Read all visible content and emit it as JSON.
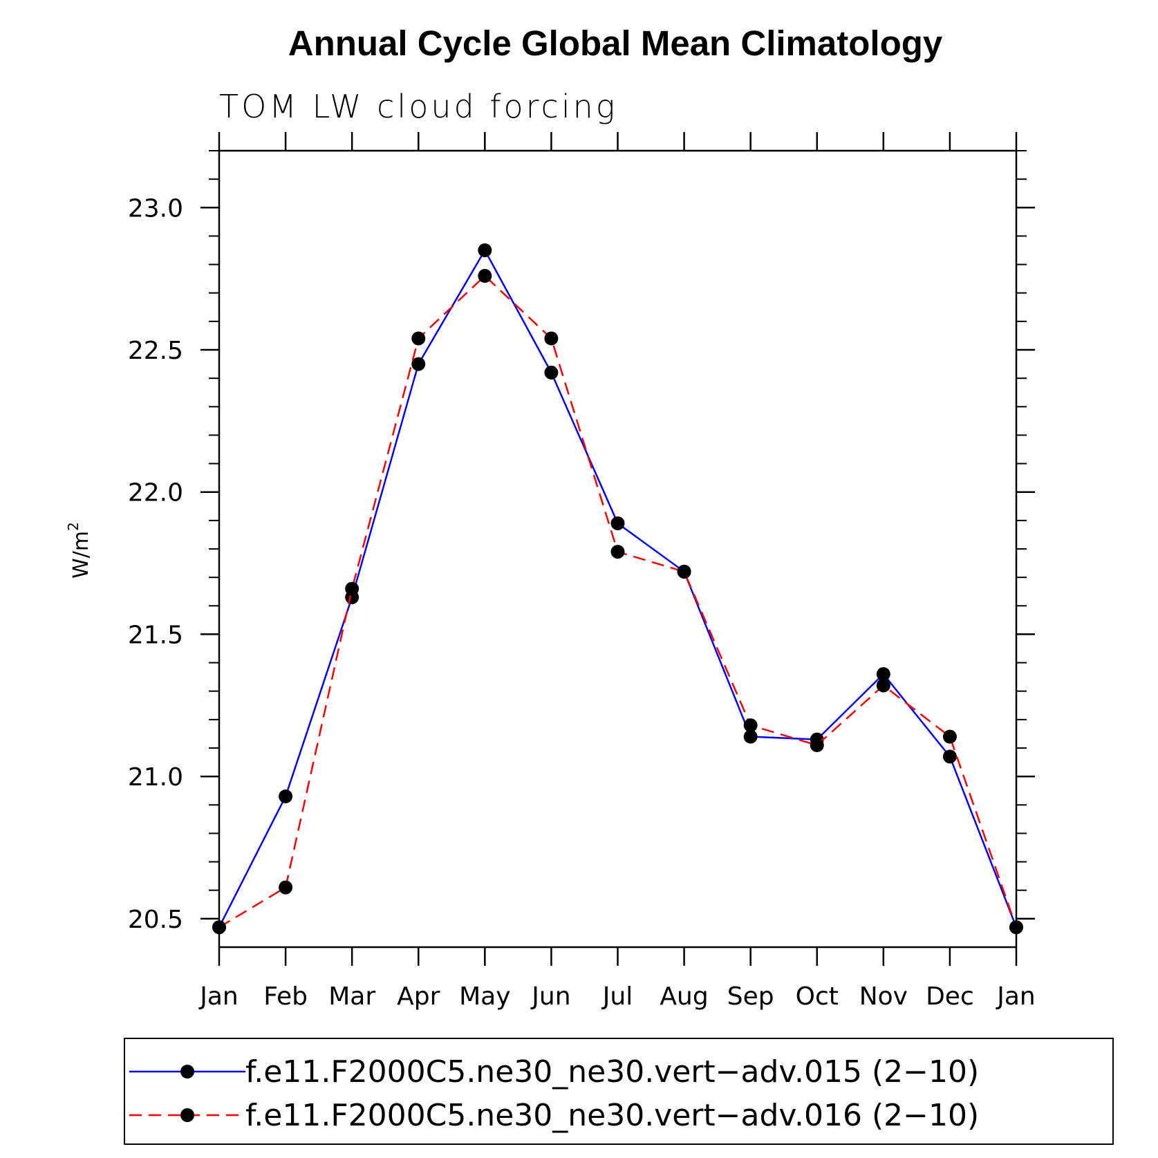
{
  "chart_data": {
    "type": "line",
    "title": "Annual Cycle Global Mean Climatology",
    "subtitle": "TOM LW cloud forcing",
    "ylabel": "W/m",
    "ylabel_sup": "2",
    "xlabel": "",
    "categories": [
      "Jan",
      "Feb",
      "Mar",
      "Apr",
      "May",
      "Jun",
      "Jul",
      "Aug",
      "Sep",
      "Oct",
      "Nov",
      "Dec",
      "Jan"
    ],
    "ylim": [
      20.4,
      23.2
    ],
    "yticks": [
      20.5,
      21.0,
      21.5,
      22.0,
      22.5,
      23.0
    ],
    "ytick_labels": [
      "20.5",
      "21.0",
      "21.5",
      "22.0",
      "22.5",
      "23.0"
    ],
    "grid": false,
    "legend_position": "bottom",
    "series": [
      {
        "name": "f.e11.F2000C5.ne30_ne30.vert−adv.015 (2−10)",
        "color": "#0000ff",
        "dash": "solid",
        "marker": "filled-circle",
        "values": [
          20.47,
          20.93,
          21.63,
          22.45,
          22.85,
          22.42,
          21.89,
          21.72,
          21.14,
          21.13,
          21.36,
          21.07,
          20.47
        ]
      },
      {
        "name": "f.e11.F2000C5.ne30_ne30.vert−adv.016 (2−10)",
        "color": "#ff0000",
        "dash": "dashed",
        "marker": "filled-circle",
        "values": [
          20.47,
          20.61,
          21.66,
          22.54,
          22.76,
          22.54,
          21.79,
          21.72,
          21.18,
          21.11,
          21.32,
          21.14,
          20.47
        ]
      }
    ]
  }
}
